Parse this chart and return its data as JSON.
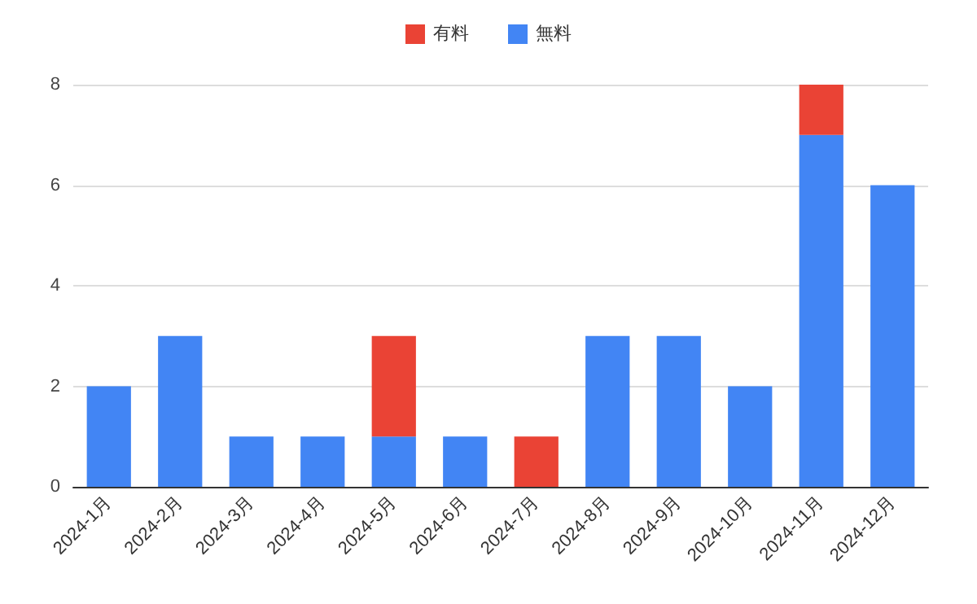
{
  "chart_data": {
    "type": "bar",
    "stacked": true,
    "categories": [
      "2024-1月",
      "2024-2月",
      "2024-3月",
      "2024-4月",
      "2024-5月",
      "2024-6月",
      "2024-7月",
      "2024-8月",
      "2024-9月",
      "2024-10月",
      "2024-11月",
      "2024-12月"
    ],
    "series": [
      {
        "name": "無料",
        "color": "#4285f4",
        "values": [
          2,
          3,
          1,
          1,
          1,
          1,
          0,
          3,
          3,
          2,
          7,
          6
        ]
      },
      {
        "name": "有料",
        "color": "#ea4335",
        "values": [
          0,
          0,
          0,
          0,
          2,
          0,
          1,
          0,
          0,
          0,
          1,
          0
        ]
      }
    ],
    "ylim": [
      0,
      8
    ],
    "yticks": [
      0,
      2,
      4,
      6,
      8
    ],
    "grid": "y",
    "legend": "top"
  }
}
